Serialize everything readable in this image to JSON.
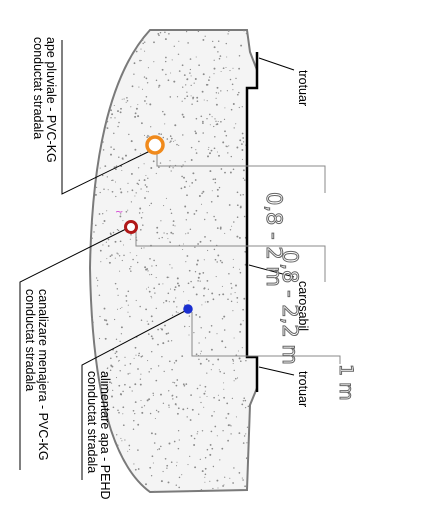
{
  "labels": {
    "storm_pipe_line1": "conductat stradala",
    "storm_pipe_line2": "ape pluviale - PVC-KG",
    "sewer_pipe_line1": "conductat stradala",
    "sewer_pipe_line2": "canalizare menajera - PVC-KG",
    "water_pipe_line1": "conductat stradala",
    "water_pipe_line2": "alimentare apa - PEHD",
    "sidewalk_top": "trotuar",
    "roadway": "carosabil",
    "sidewalk_bottom": "trotuar"
  },
  "depths": {
    "storm": "0,8 - 2 m",
    "sewer": "0,8 - 2,2 m",
    "water": "1 m"
  },
  "colors": {
    "storm_pipe": "#f08a1c",
    "sewer_pipe": "#b01818",
    "water_pipe": "#1a2fd0",
    "trench_fill": "#f4f4f4",
    "dots": "#8a8a8a"
  }
}
